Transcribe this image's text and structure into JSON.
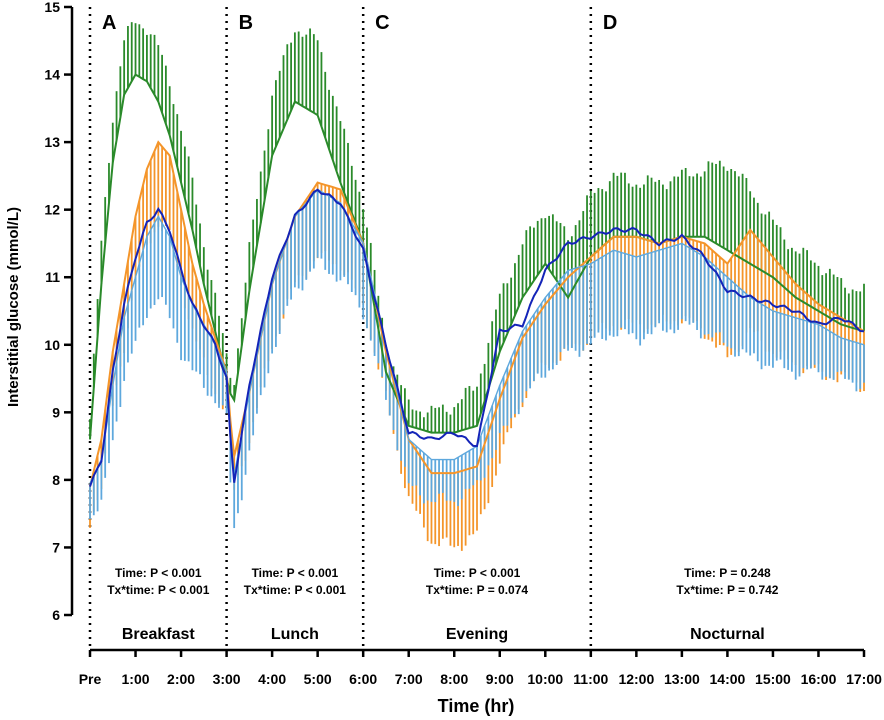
{
  "chart_data": {
    "type": "line",
    "xlabel": "Time (hr)",
    "ylabel": "Interstitial glucose (mmol/L)",
    "ylim": [
      6,
      15
    ],
    "xlim": [
      0,
      17
    ],
    "y_ticks": [
      6,
      7,
      8,
      9,
      10,
      11,
      12,
      13,
      14,
      15
    ],
    "x_ticks": [
      {
        "x": 0,
        "label": "Pre"
      },
      {
        "x": 1,
        "label": "1:00"
      },
      {
        "x": 2,
        "label": "2:00"
      },
      {
        "x": 3,
        "label": "3:00"
      },
      {
        "x": 4,
        "label": "4:00"
      },
      {
        "x": 5,
        "label": "5:00"
      },
      {
        "x": 6,
        "label": "6:00"
      },
      {
        "x": 7,
        "label": "7:00"
      },
      {
        "x": 8,
        "label": "8:00"
      },
      {
        "x": 9,
        "label": "9:00"
      },
      {
        "x": 10,
        "label": "10:00"
      },
      {
        "x": 11,
        "label": "11:00"
      },
      {
        "x": 12,
        "label": "12:00"
      },
      {
        "x": 13,
        "label": "13:00"
      },
      {
        "x": 14,
        "label": "14:00"
      },
      {
        "x": 15,
        "label": "15:00"
      },
      {
        "x": 16,
        "label": "16:00"
      },
      {
        "x": 17,
        "label": "17:00"
      }
    ],
    "dividers": [
      0,
      3,
      6,
      11
    ],
    "panels": [
      {
        "letter": "A",
        "phase": "Breakfast",
        "start": 0,
        "end": 3,
        "stat_time": "Time: P  < 0.001",
        "stat_tx": "Tx*time: P < 0.001"
      },
      {
        "letter": "B",
        "phase": "Lunch",
        "start": 3,
        "end": 6,
        "stat_time": "Time: P  < 0.001",
        "stat_tx": "Tx*time: P < 0.001"
      },
      {
        "letter": "C",
        "phase": "Evening",
        "start": 6,
        "end": 11,
        "stat_time": "Time: P  < 0.001",
        "stat_tx": "Tx*time: P = 0.074"
      },
      {
        "letter": "D",
        "phase": "Nocturnal",
        "start": 11,
        "end": 17,
        "stat_time": "Time: P  = 0.248",
        "stat_tx": "Tx*time: P = 0.742"
      }
    ],
    "series": [
      {
        "name": "green",
        "color": "#2a8a2a",
        "error_dir": "up",
        "x": [
          0,
          0.25,
          0.5,
          0.75,
          1,
          1.25,
          1.5,
          1.75,
          2,
          2.25,
          2.5,
          2.75,
          3,
          3.15,
          3.5,
          4,
          4.5,
          5,
          5.5,
          6,
          6.5,
          7,
          7.5,
          8,
          8.5,
          9,
          9.5,
          10,
          10.5,
          11,
          11.5,
          12,
          12.5,
          13,
          13.5,
          14,
          14.5,
          15,
          15.5,
          16,
          16.5,
          17
        ],
        "y": [
          8.6,
          10.9,
          12.7,
          13.7,
          14.0,
          13.9,
          13.6,
          13.1,
          12.4,
          11.7,
          10.9,
          10.2,
          9.5,
          9.1,
          10.8,
          12.8,
          13.6,
          13.4,
          12.4,
          11.5,
          9.6,
          8.8,
          8.7,
          8.7,
          8.8,
          9.9,
          10.7,
          11.2,
          10.7,
          11.3,
          11.6,
          11.6,
          11.5,
          11.6,
          11.6,
          11.4,
          11.2,
          11.0,
          10.7,
          10.5,
          10.3,
          10.2
        ],
        "err": [
          0.3,
          0.6,
          0.7,
          0.8,
          0.8,
          0.8,
          0.8,
          0.8,
          0.8,
          0.7,
          0.6,
          0.5,
          0.3,
          0.3,
          0.6,
          0.9,
          1.1,
          1.1,
          0.9,
          0.6,
          0.4,
          0.3,
          0.3,
          0.4,
          0.6,
          0.8,
          0.8,
          0.8,
          0.9,
          0.9,
          0.9,
          0.8,
          0.9,
          0.9,
          1.0,
          1.3,
          1.1,
          0.8,
          0.7,
          0.7,
          0.6,
          0.6
        ]
      },
      {
        "name": "orange",
        "color": "#f4952a",
        "error_dir": "down",
        "x": [
          0,
          0.25,
          0.5,
          0.75,
          1,
          1.25,
          1.5,
          1.75,
          2,
          2.25,
          2.5,
          2.75,
          3,
          3.15,
          3.5,
          4,
          4.5,
          5,
          5.5,
          6,
          6.5,
          7,
          7.5,
          8,
          8.5,
          9,
          9.5,
          10,
          10.5,
          11,
          11.5,
          12,
          12.5,
          13,
          13.5,
          14,
          14.5,
          15,
          15.5,
          16,
          16.5,
          17
        ],
        "y": [
          7.9,
          8.6,
          9.9,
          10.9,
          11.9,
          12.6,
          13.0,
          12.8,
          12.0,
          11.2,
          10.6,
          10.1,
          9.6,
          8.3,
          9.3,
          10.9,
          11.9,
          12.4,
          12.3,
          11.5,
          9.9,
          8.6,
          8.1,
          8.1,
          8.2,
          9.2,
          10.1,
          10.6,
          11.0,
          11.3,
          11.6,
          11.6,
          11.5,
          11.6,
          11.5,
          11.2,
          11.7,
          11.3,
          10.9,
          10.6,
          10.4,
          10.2
        ],
        "err": [
          0.5,
          0.7,
          0.8,
          0.9,
          1.0,
          1.1,
          1.2,
          1.2,
          1.1,
          1.0,
          0.9,
          0.8,
          0.6,
          0.5,
          0.7,
          0.9,
          1.0,
          1.1,
          1.1,
          0.9,
          0.7,
          0.9,
          1.0,
          1.1,
          1.0,
          0.9,
          0.9,
          0.9,
          1.1,
          1.2,
          1.3,
          1.3,
          1.2,
          1.2,
          1.3,
          1.4,
          1.5,
          1.4,
          1.2,
          1.0,
          0.9,
          0.8
        ]
      },
      {
        "name": "light blue",
        "color": "#5ea8dd",
        "error_dir": "down",
        "x": [
          0,
          0.25,
          0.5,
          0.75,
          1,
          1.25,
          1.5,
          1.75,
          2,
          2.25,
          2.5,
          2.75,
          3,
          3.15,
          3.5,
          4,
          4.5,
          5,
          5.5,
          6,
          6.5,
          7,
          7.5,
          8,
          8.5,
          9,
          9.5,
          10,
          10.5,
          11,
          11.5,
          12,
          12.5,
          13,
          13.5,
          14,
          14.5,
          15,
          15.5,
          16,
          16.5,
          17
        ],
        "y": [
          7.95,
          8.3,
          9.4,
          10.4,
          11.0,
          11.6,
          11.9,
          11.6,
          11.0,
          10.6,
          10.3,
          10.0,
          9.6,
          8.0,
          9.3,
          10.9,
          11.9,
          12.3,
          12.1,
          11.5,
          10.0,
          8.6,
          8.3,
          8.3,
          8.5,
          9.4,
          10.2,
          10.7,
          11.1,
          11.2,
          11.4,
          11.3,
          11.4,
          11.5,
          11.3,
          11.0,
          10.7,
          10.5,
          10.4,
          10.3,
          10.1,
          10.0
        ],
        "err": [
          0.5,
          0.7,
          0.8,
          0.9,
          1.0,
          1.1,
          1.2,
          1.2,
          1.1,
          1.0,
          0.9,
          0.8,
          0.7,
          0.8,
          0.9,
          1.0,
          1.1,
          1.1,
          1.1,
          1.0,
          0.8,
          0.7,
          0.6,
          0.6,
          0.6,
          0.8,
          1.0,
          1.1,
          1.2,
          1.2,
          1.2,
          1.2,
          1.2,
          1.2,
          1.1,
          1.0,
          0.9,
          0.8,
          0.8,
          0.7,
          0.6,
          0.6
        ]
      },
      {
        "name": "dark blue",
        "color": "#1424b8",
        "error_dir": "none",
        "x": [
          0,
          0.25,
          0.5,
          0.75,
          1,
          1.25,
          1.5,
          1.75,
          2,
          2.25,
          2.5,
          2.75,
          3,
          3.15,
          3.5,
          4,
          4.5,
          5,
          5.5,
          6,
          6.5,
          7,
          7.5,
          8,
          8.5,
          9,
          9.5,
          10,
          10.5,
          11,
          11.5,
          12,
          12.5,
          13,
          13.5,
          14,
          14.5,
          15,
          15.5,
          16,
          16.5,
          17
        ],
        "y": [
          7.9,
          8.3,
          9.6,
          10.6,
          11.3,
          11.8,
          12.0,
          11.7,
          11.1,
          10.6,
          10.3,
          10.0,
          9.5,
          7.9,
          9.4,
          11.0,
          11.9,
          12.3,
          12.1,
          11.4,
          10.0,
          8.7,
          8.6,
          8.7,
          8.5,
          10.2,
          10.3,
          11.1,
          11.5,
          11.6,
          11.7,
          11.7,
          11.5,
          11.6,
          11.3,
          10.8,
          10.7,
          10.6,
          10.5,
          10.3,
          10.4,
          10.2
        ]
      }
    ]
  }
}
